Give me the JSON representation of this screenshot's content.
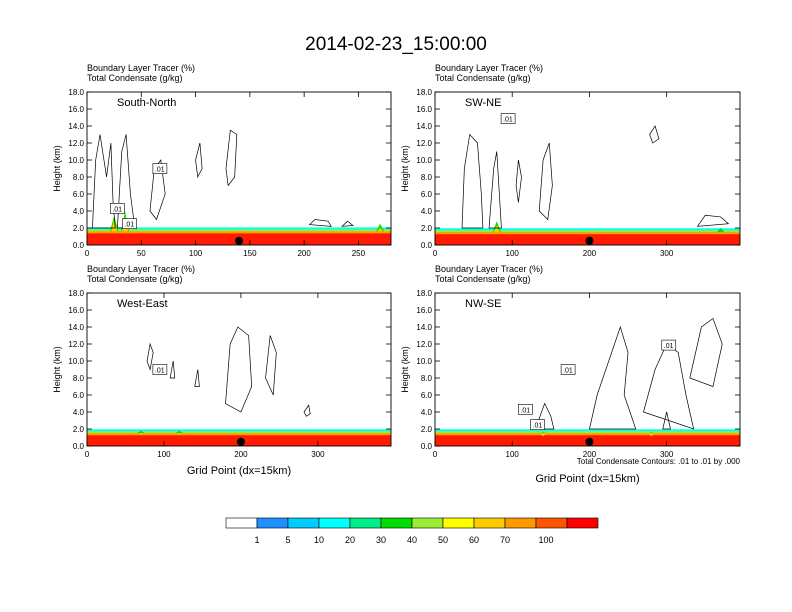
{
  "title": "2014-02-23_15:00:00",
  "footnote": "Total Condensate Contours: .01 to .01 by .000",
  "colorbar": {
    "colors": [
      "#ffffff",
      "#1e90ff",
      "#00ccff",
      "#00ffff",
      "#00ee88",
      "#00dd00",
      "#99ee33",
      "#ffff00",
      "#ffcc00",
      "#ff9900",
      "#ff5500",
      "#ff0000"
    ],
    "labels": [
      "1",
      "5",
      "10",
      "20",
      "30",
      "40",
      "50",
      "60",
      "70",
      "100"
    ]
  },
  "chart_data": [
    {
      "type": "heatmap",
      "section": "South-North",
      "title_line1": "Boundary Layer Tracer   (%)",
      "title_line2": "Total Condensate   (g/kg)",
      "ylabel": "Height (km)",
      "xlabel": "",
      "ylim": [
        0,
        18
      ],
      "yticks": [
        "0.0",
        "2.0",
        "4.0",
        "6.0",
        "8.0",
        "10.0",
        "12.0",
        "14.0",
        "16.0",
        "18.0"
      ],
      "xlim": [
        0,
        280
      ],
      "xticks": [
        0,
        50,
        100,
        150,
        200,
        250
      ],
      "marker_x": 140,
      "contour_labels": [
        ".01",
        ".01",
        ".01"
      ],
      "pbl_top_km": 1.6,
      "peaks": [
        [
          25,
          3.5
        ],
        [
          35,
          4.0
        ],
        [
          270,
          2.5
        ]
      ]
    },
    {
      "type": "heatmap",
      "section": "SW-NE",
      "title_line1": "Boundary Layer Tracer   (%)",
      "title_line2": "Total Condensate   (g/kg)",
      "ylabel": "Height (km)",
      "xlabel": "",
      "ylim": [
        0,
        18
      ],
      "yticks": [
        "0.0",
        "2.0",
        "4.0",
        "6.0",
        "8.0",
        "10.0",
        "12.0",
        "14.0",
        "16.0",
        "18.0"
      ],
      "xlim": [
        0,
        395
      ],
      "xticks": [
        0,
        100,
        200,
        300
      ],
      "marker_x": 200,
      "contour_labels": [
        ".01"
      ],
      "pbl_top_km": 1.5,
      "peaks": [
        [
          80,
          2.8
        ],
        [
          370,
          2.0
        ]
      ]
    },
    {
      "type": "heatmap",
      "section": "West-East",
      "title_line1": "Boundary Layer Tracer   (%)",
      "title_line2": "Total Condensate   (g/kg)",
      "ylabel": "Height (km)",
      "xlabel": "Grid Point (dx=15km)",
      "ylim": [
        0,
        18
      ],
      "yticks": [
        "0.0",
        "2.0",
        "4.0",
        "6.0",
        "8.0",
        "10.0",
        "12.0",
        "14.0",
        "16.0",
        "18.0"
      ],
      "xlim": [
        0,
        395
      ],
      "xticks": [
        0,
        100,
        200,
        300
      ],
      "marker_x": 200,
      "contour_labels": [
        ".01"
      ],
      "pbl_top_km": 1.5,
      "peaks": [
        [
          70,
          1.8
        ],
        [
          120,
          1.8
        ]
      ]
    },
    {
      "type": "heatmap",
      "section": "NW-SE",
      "title_line1": "Boundary Layer Tracer   (%)",
      "title_line2": "Total Condensate   (g/kg)",
      "ylabel": "Height (km)",
      "xlabel": "Grid Point (dx=15km)",
      "ylim": [
        0,
        18
      ],
      "yticks": [
        "0.0",
        "2.0",
        "4.0",
        "6.0",
        "8.0",
        "10.0",
        "12.0",
        "14.0",
        "16.0",
        "18.0"
      ],
      "xlim": [
        0,
        395
      ],
      "xticks": [
        0,
        100,
        200,
        300
      ],
      "marker_x": 200,
      "contour_labels": [
        ".01",
        ".01",
        ".01",
        ".01"
      ],
      "pbl_top_km": 1.5,
      "peaks": [
        [
          140,
          1.6
        ],
        [
          280,
          1.6
        ]
      ]
    }
  ]
}
